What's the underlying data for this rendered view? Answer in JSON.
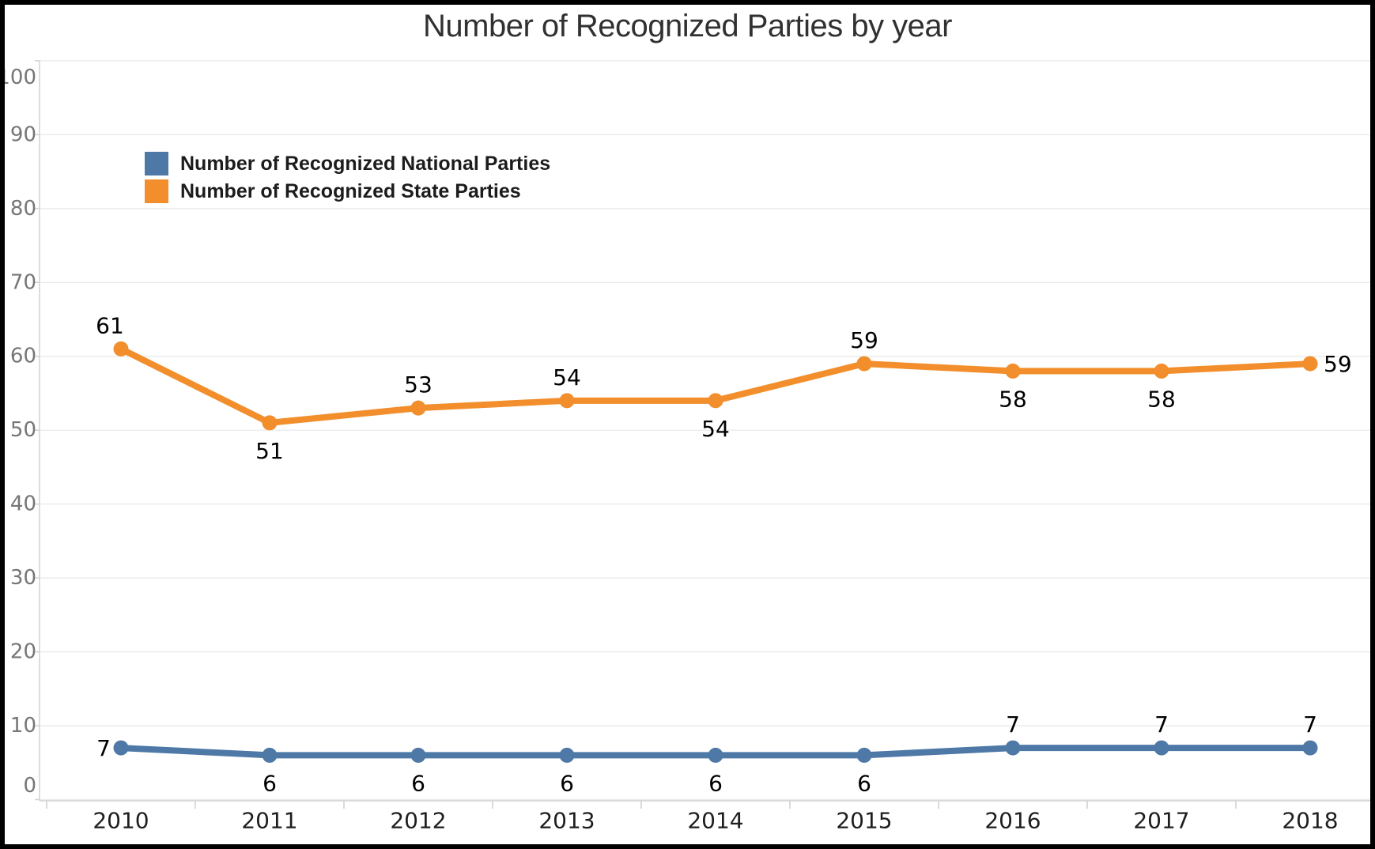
{
  "chart_data": {
    "type": "line",
    "title": "Number of Recognized Parties by year",
    "x_categories": [
      "2010",
      "2011",
      "2012",
      "2013",
      "2014",
      "2015",
      "2016",
      "2017",
      "2018"
    ],
    "series": [
      {
        "name": "Number of Recognized National Parties",
        "color": "#4e79a7",
        "values": [
          7,
          6,
          6,
          6,
          6,
          6,
          7,
          7,
          7
        ],
        "label_positions": [
          "left",
          "below",
          "below",
          "below",
          "below",
          "below",
          "above",
          "above",
          "above"
        ]
      },
      {
        "name": "Number of Recognized State Parties",
        "color": "#f28e2b",
        "values": [
          61,
          51,
          53,
          54,
          54,
          59,
          58,
          58,
          59
        ],
        "label_positions": [
          "above-left",
          "below",
          "above",
          "above",
          "below",
          "above",
          "below",
          "below",
          "right"
        ]
      }
    ],
    "xlabel": "",
    "ylabel": "",
    "ylim": [
      0,
      100
    ],
    "yticks": [
      0,
      10,
      20,
      30,
      40,
      50,
      60,
      70,
      80,
      90,
      100
    ],
    "grid": "horizontal",
    "legend_position": "top-left-inside",
    "grid_color": "#ececec",
    "axis_line_color": "#d2d2d2",
    "y_tick_text_color": "#767676",
    "x_tick_text_color": "#1e1e1e",
    "data_label_color": "#000000",
    "title_color": "#313131"
  }
}
